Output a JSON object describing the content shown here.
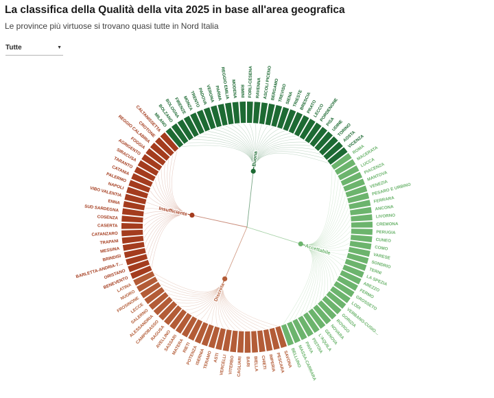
{
  "header": {
    "title": "La classifica della Qualità della vita 2025 in base all'area geografica",
    "subtitle": "Le province più virtuose si trovano quasi tutte in Nord Italia"
  },
  "filter": {
    "selected": "Tutte",
    "chevron": "▼"
  },
  "chart_data": {
    "type": "radial-dendrogram",
    "title": "La classifica della Qualità della vita 2025 in base all'area geografica",
    "legend_position": "center-nodes",
    "grid": false,
    "categories": [
      {
        "name": "Buona",
        "color": "#1d6a33",
        "provinces": [
          "MILANO",
          "BOLZANO",
          "BOLOGNA",
          "FIRENZE",
          "MONZA",
          "TRENTO",
          "PADOVA",
          "VERONA",
          "PARMA",
          "REGGIO EMILIA",
          "MODENA",
          "RIMINI",
          "FORLÌ-CESENA",
          "RAVENNA",
          "ASCOLI PICENO",
          "BERGAMO",
          "TREVISO",
          "SIENA",
          "TRIESTE",
          "BRESCIA",
          "PRATO",
          "LECCO",
          "PORDENONE",
          "PISA",
          "UDINE",
          "TORINO",
          "AOSTA",
          "VICENZA"
        ]
      },
      {
        "name": "Accettabile",
        "color": "#6cb46d",
        "provinces": [
          "ROMA",
          "MACERATA",
          "LUCCA",
          "PIACENZA",
          "MANTOVA",
          "VENEZIA",
          "PESARO E URBINO",
          "FERRARA",
          "ANCONA",
          "LIVORNO",
          "CREMONA",
          "PERUGIA",
          "CUNEO",
          "COMO",
          "VARESE",
          "SONDRIO",
          "TERNI",
          "LA SPEZIA",
          "AREZZO",
          "FERMO",
          "GROSSETO",
          "LODI",
          "VERBANO-CUSIO…",
          "GORIZIA",
          "ROVIGO",
          "NOVARA",
          "GENOVA",
          "L'AQUILA",
          "PISTOIA",
          "PAVIA",
          "MASSA-CARRARA",
          "BELLUNO"
        ]
      },
      {
        "name": "Discreta",
        "color": "#b35c37",
        "provinces": [
          "SAVONA",
          "PESCARA",
          "IMPERIA",
          "CHIETI",
          "BIELLA",
          "BARI",
          "CAGLIARI",
          "VITERBO",
          "VERCELLI",
          "ASTI",
          "TERAMO",
          "ISERNIA",
          "POTENZA",
          "RIETI",
          "MATERA",
          "SASSARI",
          "AVELLINO",
          "RAGUSA",
          "CAMPOBASSO",
          "ALESSANDRIA",
          "SALERNO",
          "LECCE",
          "FROSINONE",
          "NUORO",
          "LATINA"
        ]
      },
      {
        "name": "Insufficiente",
        "color": "#a43c1e",
        "provinces": [
          "BENEVENTO",
          "ORISTANO",
          "BARLETTA-ANDRIA-T…",
          "BRINDISI",
          "MESSINA",
          "TRAPANI",
          "CATANZARO",
          "CASERTA",
          "COSENZA",
          "SUD SARDEGNA",
          "ENNA",
          "VIBO VALENTIA",
          "NAPOLI",
          "PALERMO",
          "CATANIA",
          "TARANTO",
          "SIRACUSA",
          "AGRIGENTO",
          "FOGGIA",
          "REGGIO CALABRIA",
          "CROTONE",
          "CALTANISSETTA"
        ]
      }
    ]
  }
}
